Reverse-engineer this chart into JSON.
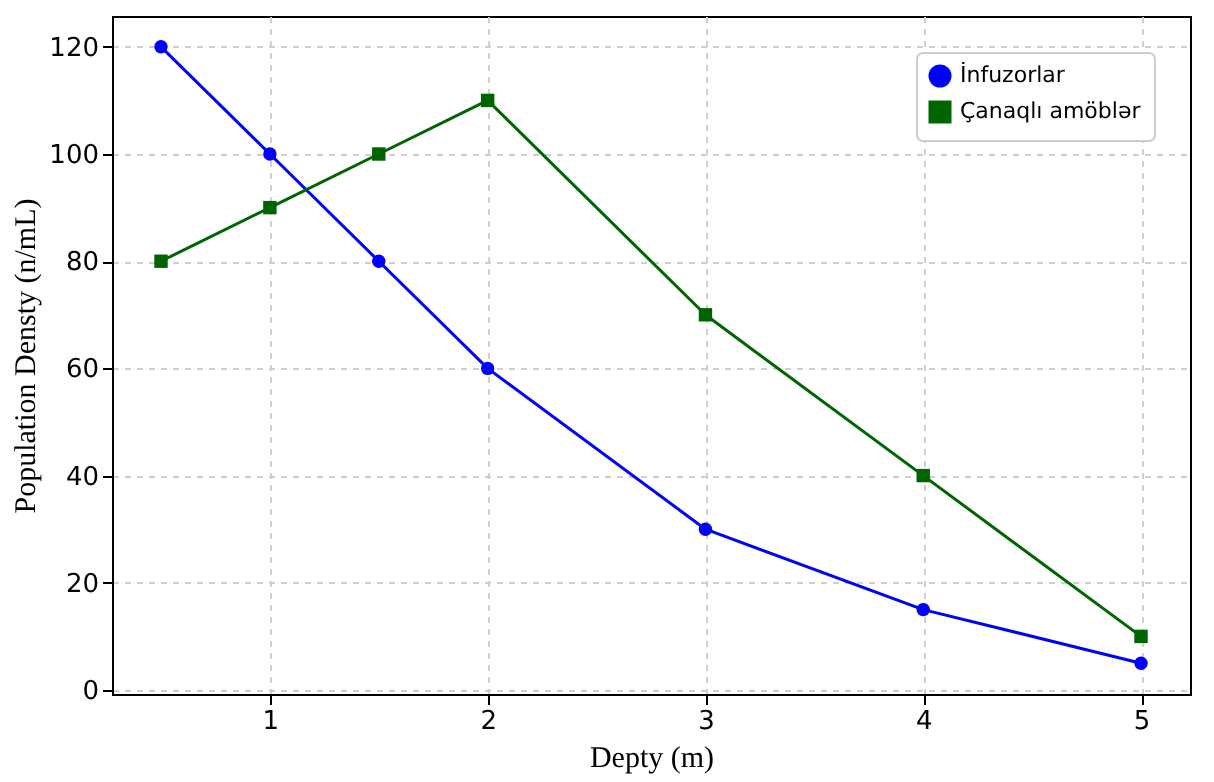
{
  "chart_data": {
    "type": "line",
    "xlabel": "Depty (m)",
    "ylabel": "Population Densty  (n/mL)",
    "xlim": [
      0.275,
      5.225
    ],
    "xticks": [
      1,
      2,
      3,
      4,
      5
    ],
    "ylim": [
      -0.75,
      125.75
    ],
    "yticks": [
      0,
      20,
      40,
      60,
      80,
      100,
      120
    ],
    "grid": true,
    "legend": "top right",
    "line_style": "solid",
    "series": [
      {
        "name": "İnfuzorlar",
        "color": "#0000ff",
        "marker": "circle",
        "x": [
          0.5,
          1,
          1.5,
          2,
          3,
          4,
          5
        ],
        "values": [
          120,
          100,
          80,
          60,
          30,
          15,
          5
        ]
      },
      {
        "name": "Çanaqlı amöblər",
        "color": "#006400",
        "marker": "square",
        "x": [
          0.5,
          1,
          1.5,
          2,
          3,
          4,
          5
        ],
        "values": [
          80,
          90,
          100,
          110,
          70,
          40,
          10
        ]
      }
    ]
  }
}
